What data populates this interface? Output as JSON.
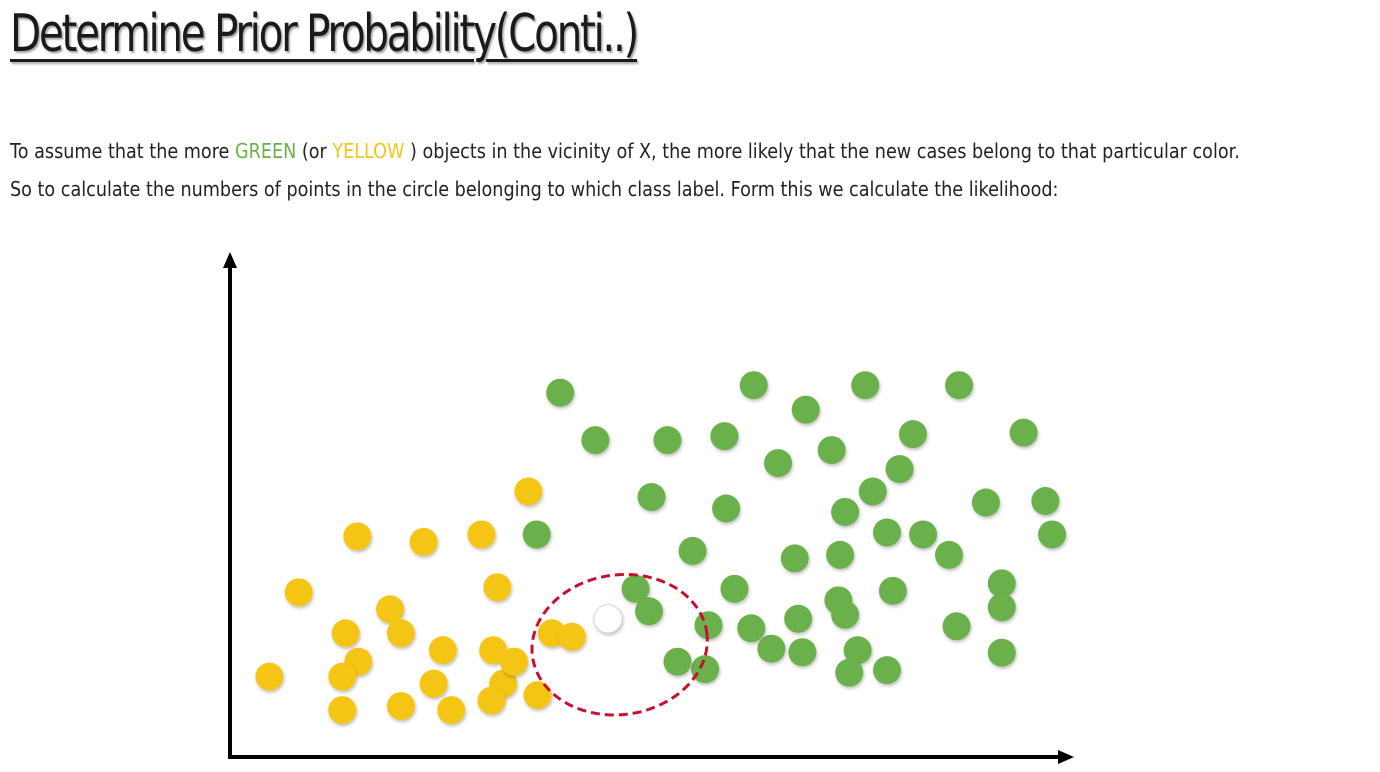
{
  "title": "Determine Prior Probability(Conti..)",
  "paragraph": {
    "line1": {
      "part1": "To assume that the more ",
      "green_word": "GREEN",
      "part2": " (or ",
      "yellow_word": "YELLOW",
      "part3": " ) objects in the vicinity of X, the more likely that the new cases belong to that particular color."
    },
    "line2": "So to calculate the numbers of points in the circle belonging to which class label. Form this we calculate the likelihood:"
  },
  "colors": {
    "green": "#6ab04c",
    "yellow": "#f5c518",
    "new_point": "#ffffff",
    "circle": "#c8102e",
    "axis": "#000000"
  },
  "chart_data": {
    "type": "scatter",
    "title": "",
    "xlabel": "",
    "ylabel": "",
    "xlim": [
      0,
      100
    ],
    "ylim": [
      0,
      100
    ],
    "grid": false,
    "legend": "none",
    "series": [
      {
        "class": "green",
        "points": [
          [
            39.4,
            73.0
          ],
          [
            62.5,
            74.5
          ],
          [
            75.8,
            74.5
          ],
          [
            87.0,
            74.5
          ],
          [
            68.7,
            69.6
          ],
          [
            43.6,
            63.5
          ],
          [
            52.2,
            63.5
          ],
          [
            59.0,
            64.3
          ],
          [
            81.5,
            64.7
          ],
          [
            94.7,
            65.0
          ],
          [
            65.4,
            58.9
          ],
          [
            71.8,
            61.5
          ],
          [
            79.9,
            57.7
          ],
          [
            50.3,
            52.1
          ],
          [
            59.2,
            49.8
          ],
          [
            73.4,
            49.1
          ],
          [
            76.7,
            53.2
          ],
          [
            90.2,
            51.0
          ],
          [
            97.3,
            51.3
          ],
          [
            36.6,
            44.6
          ],
          [
            55.2,
            41.3
          ],
          [
            67.4,
            39.8
          ],
          [
            72.8,
            40.5
          ],
          [
            78.4,
            45.0
          ],
          [
            82.7,
            44.6
          ],
          [
            98.1,
            44.6
          ],
          [
            85.8,
            40.5
          ],
          [
            48.4,
            33.7
          ],
          [
            60.2,
            33.7
          ],
          [
            72.6,
            31.4
          ],
          [
            79.1,
            33.3
          ],
          [
            92.1,
            34.8
          ],
          [
            50.0,
            29.2
          ],
          [
            62.2,
            25.8
          ],
          [
            67.8,
            27.7
          ],
          [
            73.4,
            28.5
          ],
          [
            92.1,
            30.0
          ],
          [
            86.7,
            26.2
          ],
          [
            56.7,
            17.6
          ],
          [
            53.4,
            19.1
          ],
          [
            64.6,
            21.7
          ],
          [
            68.3,
            21.0
          ],
          [
            74.9,
            21.4
          ],
          [
            92.1,
            20.9
          ],
          [
            73.9,
            16.9
          ],
          [
            78.4,
            17.4
          ],
          [
            57.1,
            26.4
          ]
        ]
      },
      {
        "class": "yellow",
        "points": [
          [
            35.6,
            53.2
          ],
          [
            15.2,
            44.2
          ],
          [
            23.1,
            43.1
          ],
          [
            30.0,
            44.6
          ],
          [
            19.1,
            29.6
          ],
          [
            31.9,
            34.0
          ],
          [
            8.2,
            33.0
          ],
          [
            13.8,
            24.8
          ],
          [
            20.4,
            24.8
          ],
          [
            25.4,
            21.4
          ],
          [
            36.7,
            12.4
          ],
          [
            24.3,
            14.7
          ],
          [
            32.6,
            14.7
          ],
          [
            15.3,
            19.1
          ],
          [
            38.4,
            24.8
          ],
          [
            4.7,
            16.1
          ],
          [
            13.4,
            16.1
          ],
          [
            13.4,
            9.4
          ],
          [
            20.4,
            10.2
          ],
          [
            26.4,
            9.4
          ],
          [
            31.2,
            11.3
          ],
          [
            31.4,
            21.4
          ],
          [
            40.8,
            24.1
          ],
          [
            33.9,
            19.1
          ]
        ]
      },
      {
        "class": "new",
        "points": [
          [
            45.1,
            27.7
          ]
        ]
      }
    ],
    "annotations": {
      "neighborhood_ellipse": {
        "cx": 46.5,
        "cy": 22.5,
        "rx": 10.5,
        "ry": 14.0
      }
    }
  }
}
